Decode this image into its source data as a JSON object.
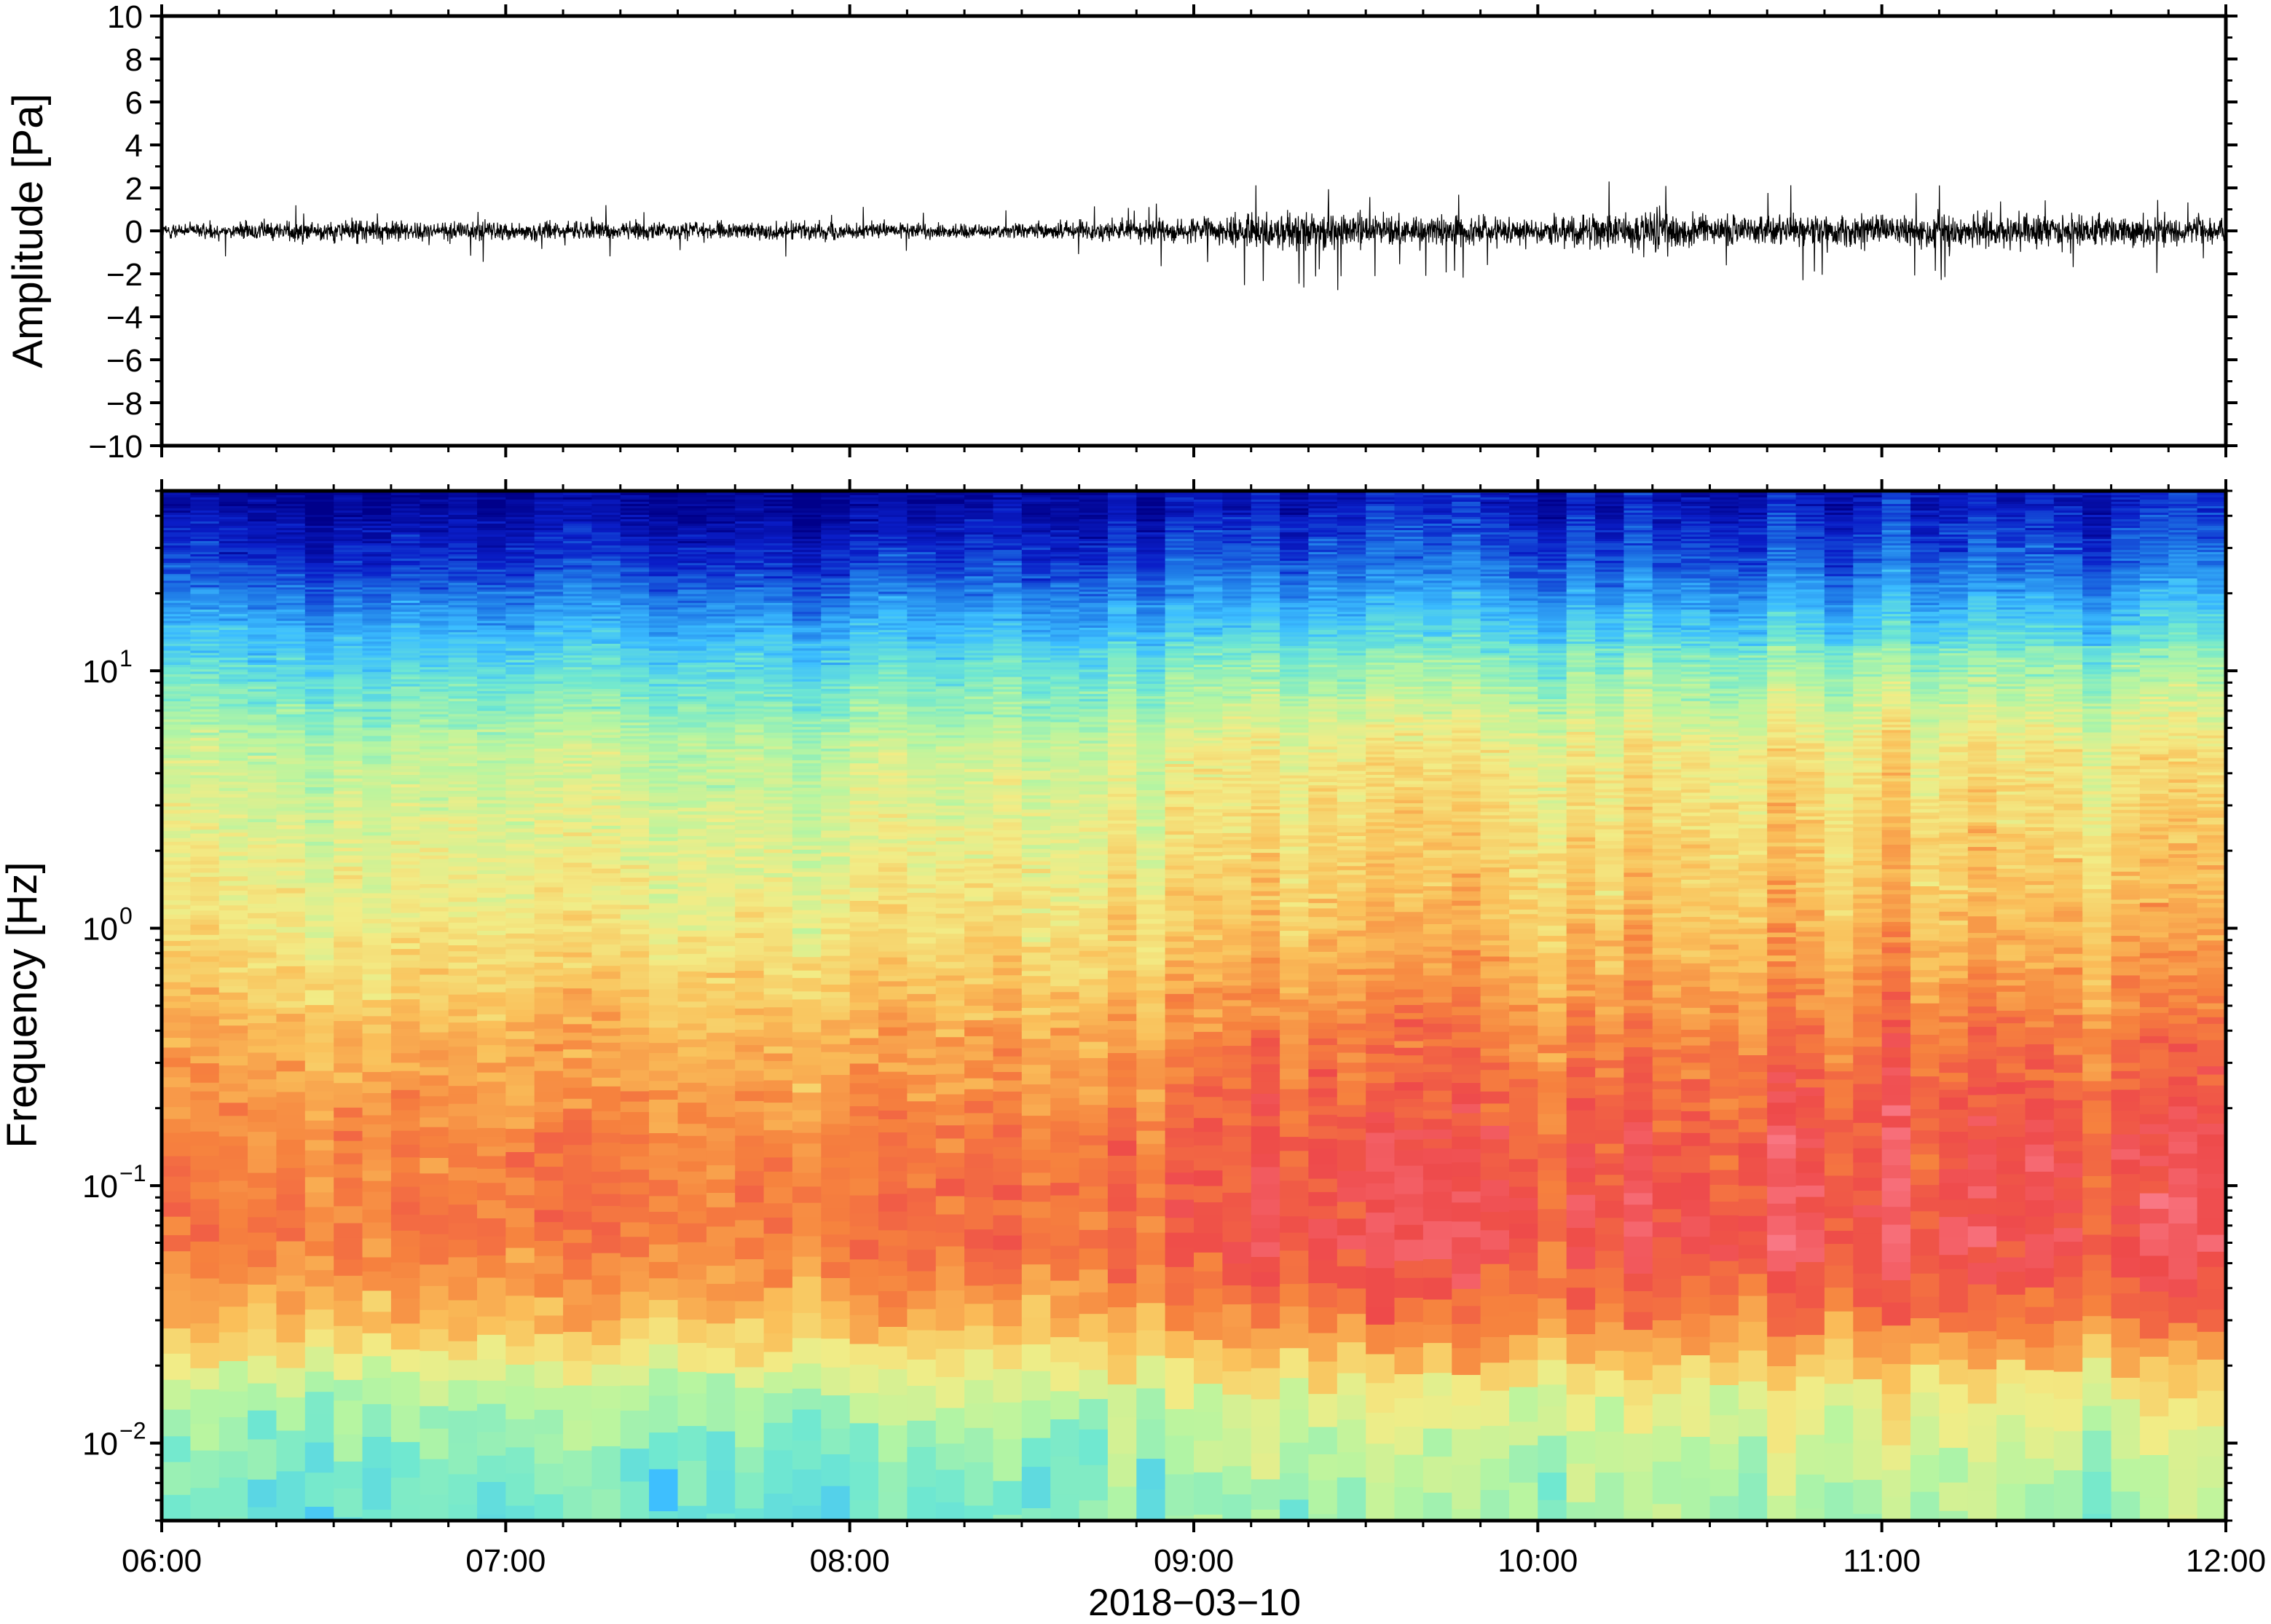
{
  "chart_data": [
    {
      "type": "line",
      "title": "",
      "ylabel": "Amplitude [Pa]",
      "xlabel": "",
      "ylim": [
        -10,
        10
      ],
      "xlim": [
        "06:00",
        "12:00"
      ],
      "y_ticks": [
        {
          "value": 10,
          "label": "10"
        },
        {
          "value": 8,
          "label": "8"
        },
        {
          "value": 6,
          "label": "6"
        },
        {
          "value": 4,
          "label": "4"
        },
        {
          "value": 2,
          "label": "2"
        },
        {
          "value": 0,
          "label": "0"
        },
        {
          "value": -2,
          "label": "−2"
        },
        {
          "value": -4,
          "label": "−4"
        },
        {
          "value": -6,
          "label": "−6"
        },
        {
          "value": -8,
          "label": "−8"
        },
        {
          "value": -10,
          "label": "−10"
        }
      ],
      "envelope": {
        "times": [
          "06:00",
          "06:30",
          "07:00",
          "07:30",
          "08:00",
          "08:30",
          "09:00",
          "09:15",
          "09:30",
          "10:00",
          "10:20",
          "10:30",
          "11:00",
          "11:30",
          "12:00"
        ],
        "max": [
          1.0,
          1.3,
          1.4,
          1.3,
          1.2,
          1.1,
          1.6,
          2.5,
          2.2,
          2.0,
          2.8,
          2.0,
          2.7,
          2.6,
          1.6
        ],
        "min": [
          -1.0,
          -2.2,
          -1.4,
          -1.3,
          -1.2,
          -1.3,
          -1.8,
          -3.3,
          -2.6,
          -2.0,
          -3.9,
          -2.3,
          -2.4,
          -2.8,
          -1.7
        ]
      },
      "color": "#000000"
    },
    {
      "type": "heatmap",
      "title": "",
      "ylabel": "Frequency [Hz]",
      "xlabel": "2018−03−10",
      "y_scale": "log",
      "ylim": [
        0.005,
        50
      ],
      "xlim": [
        "06:00",
        "12:00"
      ],
      "y_ticks": [
        {
          "value": 0.01,
          "base": "10",
          "exp": "−2"
        },
        {
          "value": 0.1,
          "base": "10",
          "exp": "−1"
        },
        {
          "value": 1,
          "base": "10",
          "exp": "0"
        },
        {
          "value": 10,
          "base": "10",
          "exp": "1"
        }
      ],
      "x_ticks": [
        "06:00",
        "07:00",
        "08:00",
        "09:00",
        "10:00",
        "11:00",
        "12:00"
      ],
      "colormap": [
        "#00008a",
        "#0a1ec8",
        "#1e78e6",
        "#3cbeff",
        "#70e8d0",
        "#b8f5a0",
        "#f2ec86",
        "#fac05a",
        "#f6823e",
        "#ee4a4a",
        "#fa7a88"
      ],
      "frequency_band_levels": [
        {
          "freq": 45,
          "level": 0.03
        },
        {
          "freq": 25,
          "level": 0.14
        },
        {
          "freq": 15,
          "level": 0.28
        },
        {
          "freq": 9,
          "level": 0.4
        },
        {
          "freq": 5,
          "level": 0.52
        },
        {
          "freq": 2,
          "level": 0.58
        },
        {
          "freq": 1,
          "level": 0.62
        },
        {
          "freq": 0.4,
          "level": 0.72
        },
        {
          "freq": 0.15,
          "level": 0.8
        },
        {
          "freq": 0.06,
          "level": 0.82
        },
        {
          "freq": 0.03,
          "level": 0.72
        },
        {
          "freq": 0.015,
          "level": 0.5
        },
        {
          "freq": 0.007,
          "level": 0.4
        }
      ],
      "time_modulation": {
        "times": [
          "06:00",
          "07:00",
          "08:00",
          "09:00",
          "09:10",
          "10:00",
          "10:20",
          "10:30",
          "11:00",
          "11:30",
          "12:00"
        ],
        "delta": [
          0.0,
          0.0,
          0.0,
          0.03,
          0.08,
          0.07,
          0.09,
          0.1,
          0.11,
          0.09,
          0.07
        ]
      }
    }
  ]
}
